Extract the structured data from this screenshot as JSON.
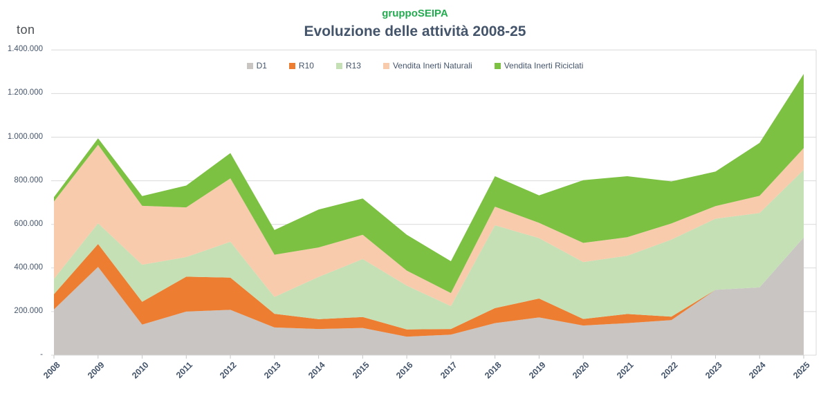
{
  "header": {
    "brand": "gruppoSEIPA",
    "brand_color": "#22AC4F",
    "title": "Evoluzione delle attività 2008-25",
    "title_color": "#44546A"
  },
  "axes": {
    "unit_label": "ton",
    "y_tick_labels": [
      "-",
      "200.000",
      "400.000",
      "600.000",
      "800.000",
      "1.000.000",
      "1.200.000",
      "1.400.000"
    ]
  },
  "colors": {
    "axis_text": "#44546A",
    "unit_text": "#4A4F54",
    "grid": "#D9D9D9",
    "tick": "#C6C6C6",
    "background": "#FFFFFF"
  },
  "chart_data": {
    "type": "area",
    "stacked": true,
    "title": "Evoluzione delle attività 2008-25",
    "subtitle": "gruppoSEIPA",
    "ylabel": "ton",
    "ylim": [
      0,
      1400000
    ],
    "ytick_step": 200000,
    "grid": true,
    "legend_position": "top",
    "x_label_rotation": -45,
    "categories": [
      "2008",
      "2009",
      "2010",
      "2011",
      "2012",
      "2013",
      "2014",
      "2015",
      "2016",
      "2017",
      "2018",
      "2019",
      "2020",
      "2021",
      "2022",
      "2023",
      "2024",
      "2025"
    ],
    "series": [
      {
        "name": "D1",
        "color": "#C8C5C3",
        "values": [
          210000,
          405000,
          140000,
          200000,
          208000,
          127000,
          120000,
          125000,
          85000,
          94000,
          147000,
          173000,
          136000,
          147000,
          161000,
          300000,
          311000,
          540000
        ]
      },
      {
        "name": "R10",
        "color": "#ED7D31",
        "values": [
          70000,
          105000,
          105000,
          160000,
          148000,
          63000,
          45000,
          50000,
          33000,
          26000,
          69000,
          87000,
          30000,
          42000,
          16000,
          0,
          0,
          0
        ]
      },
      {
        "name": "R13",
        "color": "#C5E0B4",
        "values": [
          70000,
          95000,
          170000,
          90000,
          164000,
          77000,
          194000,
          266000,
          201000,
          105000,
          380000,
          277000,
          261000,
          267000,
          353000,
          326000,
          341000,
          310000
        ]
      },
      {
        "name": "Vendita Inerti Naturali",
        "color": "#F8CBAD",
        "values": [
          355000,
          360000,
          270000,
          228000,
          291000,
          194000,
          135000,
          111000,
          69000,
          60000,
          85000,
          70000,
          88000,
          85000,
          74000,
          58000,
          79000,
          100000
        ]
      },
      {
        "name": "Vendita Inerti Riciclati",
        "color": "#7CC142",
        "values": [
          20000,
          30000,
          45000,
          100000,
          116000,
          113000,
          174000,
          167000,
          164000,
          146000,
          140000,
          126000,
          288000,
          280000,
          193000,
          158000,
          243000,
          340000
        ]
      }
    ]
  }
}
